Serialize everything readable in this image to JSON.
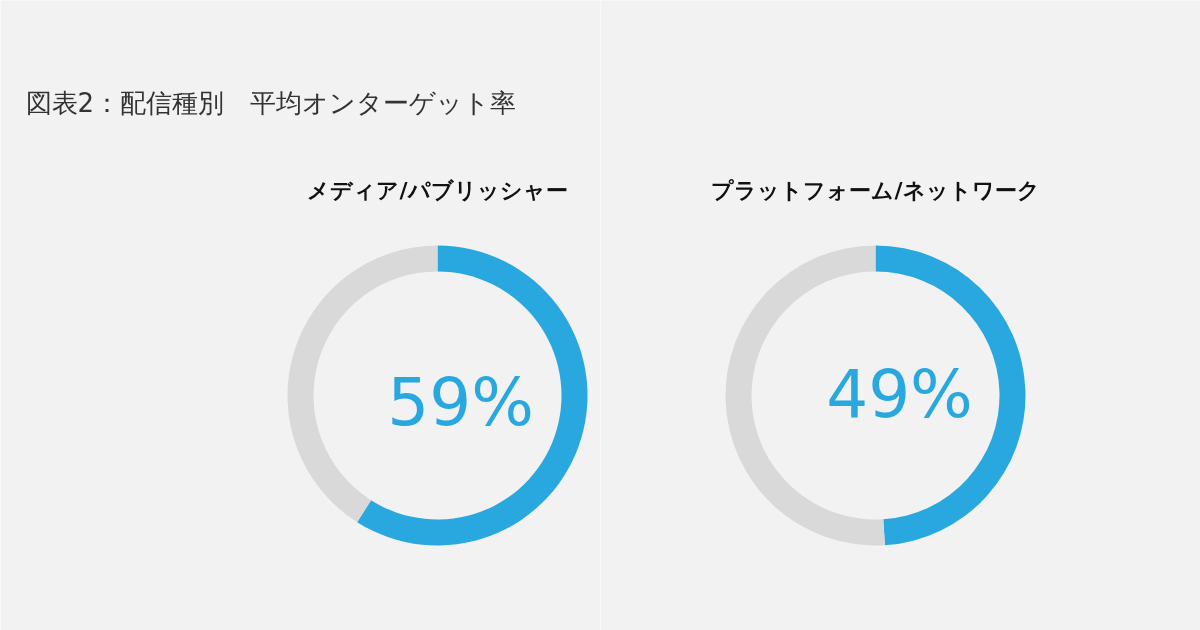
{
  "chart_data": [
    {
      "type": "donut",
      "title": "図表2：配信種別　平均オンターゲット率",
      "subtitle": "メディア/パブリッシャー",
      "categories": [
        null,
        null
      ],
      "values": [
        59,
        41
      ],
      "colors": [
        "#29a8e0",
        "#d9d9d9"
      ],
      "value_labels": [
        "59%",
        null
      ]
    },
    {
      "type": "donut",
      "subtitle": "プラットフォーム/ネットワーク",
      "categories": [
        null,
        null
      ],
      "values": [
        49,
        51
      ],
      "colors": [
        "#29a8e0",
        "#d9d9d9"
      ],
      "value_labels": [
        "49%",
        null
      ]
    }
  ]
}
